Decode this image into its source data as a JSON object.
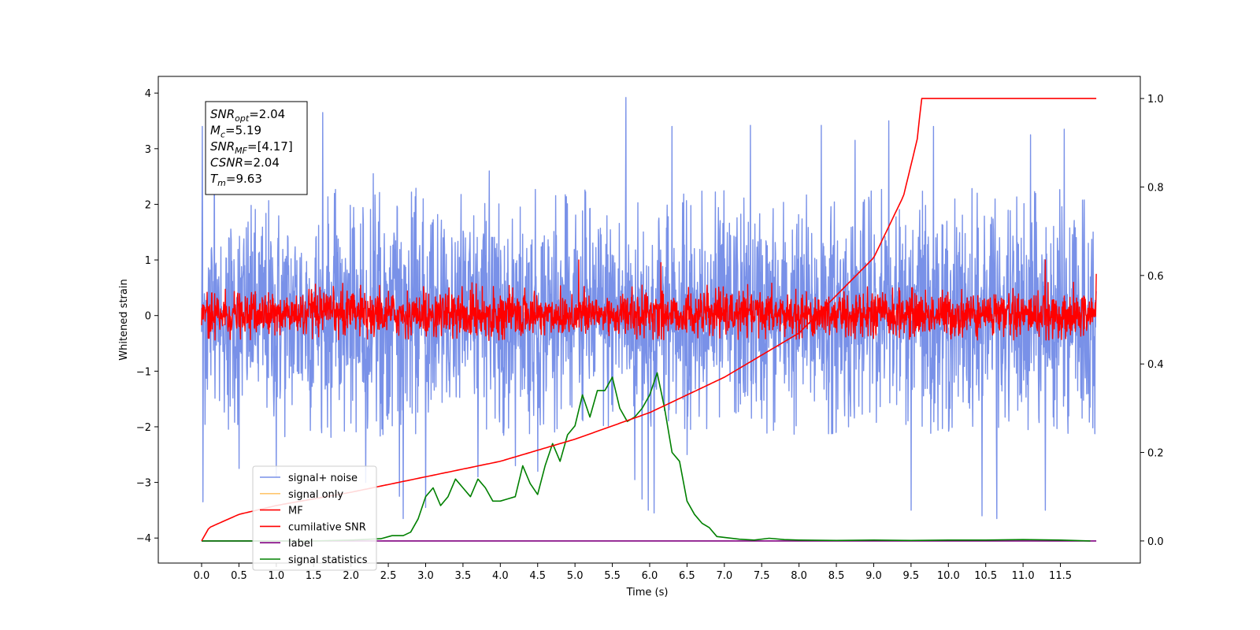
{
  "chart_data": {
    "type": "line",
    "title": "",
    "xlabel": "Time (s)",
    "ylabel": "Whitened strain",
    "y2label": "",
    "xlim": [
      -0.58,
      12.57
    ],
    "ylim": [
      -4.45,
      4.3
    ],
    "y2lim": [
      -0.05,
      1.05
    ],
    "xticks": [
      0.0,
      0.5,
      1.0,
      1.5,
      2.0,
      2.5,
      3.0,
      3.5,
      4.0,
      4.5,
      5.0,
      5.5,
      6.0,
      6.5,
      7.0,
      7.5,
      8.0,
      8.5,
      9.0,
      9.5,
      10.0,
      10.5,
      11.0,
      11.5
    ],
    "xtick_labels": [
      "0.0",
      "0.5",
      "1.0",
      "1.5",
      "2.0",
      "2.5",
      "3.0",
      "3.5",
      "4.0",
      "4.5",
      "5.0",
      "5.5",
      "6.0",
      "6.5",
      "7.0",
      "7.5",
      "8.0",
      "8.5",
      "9.0",
      "9.5",
      "10.0",
      "10.5",
      "11.0",
      "11.5"
    ],
    "yticks": [
      -4,
      -3,
      -2,
      -1,
      0,
      1,
      2,
      3,
      4
    ],
    "ytick_labels": [
      "−4",
      "−3",
      "−2",
      "−1",
      "0",
      "1",
      "2",
      "3",
      "4"
    ],
    "y2ticks": [
      0.0,
      0.2,
      0.4,
      0.6,
      0.8,
      1.0
    ],
    "y2tick_labels": [
      "0.0",
      "0.2",
      "0.4",
      "0.6",
      "0.8",
      "1.0"
    ],
    "grid": false,
    "legend_position": "lower-left",
    "legend": [
      {
        "label": "signal+ noise",
        "color": "#7991e8"
      },
      {
        "label": "signal only",
        "color": "#ffc66e"
      },
      {
        "label": "MF",
        "color": "#ff0000"
      },
      {
        "label": "cumilative SNR",
        "color": "#ff0000"
      },
      {
        "label": "label",
        "color": "#800080"
      },
      {
        "label": "signal statistics",
        "color": "#008000"
      }
    ],
    "annotation": {
      "lines": [
        {
          "var": "SNR",
          "sub": "opt",
          "value": "=2.04"
        },
        {
          "var": "M",
          "sub": "c",
          "value": "=5.19"
        },
        {
          "var": "SNR",
          "sub": "MF",
          "value": "=[4.17]"
        },
        {
          "var": "CSNR",
          "sub": "",
          "value": "=2.04"
        },
        {
          "var": "T",
          "sub": "m",
          "value": "=9.63"
        }
      ]
    },
    "series": [
      {
        "name": "signal+ noise",
        "axis": "left",
        "color": "#7991e8",
        "t_start": 0.0,
        "t_end": 11.98,
        "envelope_peaks": [
          [
            0.02,
            -3.35
          ],
          [
            0.01,
            3.4
          ],
          [
            0.17,
            3.4
          ],
          [
            0.5,
            -2.75
          ],
          [
            1.0,
            -2.9
          ],
          [
            1.62,
            3.65
          ],
          [
            2.2,
            -3.0
          ],
          [
            2.3,
            2.55
          ],
          [
            2.65,
            -3.25
          ],
          [
            2.7,
            -3.65
          ],
          [
            3.0,
            -3.45
          ],
          [
            3.7,
            -2.9
          ],
          [
            3.85,
            2.6
          ],
          [
            4.2,
            -2.7
          ],
          [
            4.5,
            -2.8
          ],
          [
            5.68,
            3.92
          ],
          [
            5.8,
            -2.95
          ],
          [
            5.9,
            -3.3
          ],
          [
            5.98,
            -3.5
          ],
          [
            6.06,
            -3.55
          ],
          [
            6.3,
            3.4
          ],
          [
            6.5,
            -2.5
          ],
          [
            7.35,
            3.42
          ],
          [
            8.3,
            3.42
          ],
          [
            8.75,
            3.15
          ],
          [
            9.2,
            3.5
          ],
          [
            9.5,
            -3.5
          ],
          [
            9.8,
            3.4
          ],
          [
            10.45,
            -3.6
          ],
          [
            10.65,
            -3.65
          ],
          [
            11.1,
            3.25
          ],
          [
            11.3,
            -3.5
          ],
          [
            11.55,
            3.35
          ]
        ],
        "typical_range": [
          -2.2,
          2.3
        ]
      },
      {
        "name": "MF",
        "axis": "left",
        "color": "#ff0000",
        "t_start": 0.0,
        "t_end": 11.98,
        "typical_range": [
          -0.45,
          0.6
        ],
        "peaks": [
          [
            5.05,
            1.0
          ],
          [
            6.15,
            0.95
          ],
          [
            11.3,
            1.0
          ],
          [
            11.98,
            0.75
          ]
        ]
      },
      {
        "name": "cumilative SNR",
        "axis": "right",
        "color": "#ff0000",
        "x": [
          0.0,
          0.1,
          0.5,
          1.0,
          2.0,
          3.0,
          4.0,
          5.0,
          6.0,
          7.0,
          8.0,
          9.0,
          9.4,
          9.6,
          9.63,
          11.98
        ],
        "values": [
          0.0,
          0.03,
          0.06,
          0.08,
          0.11,
          0.145,
          0.18,
          0.23,
          0.29,
          0.37,
          0.47,
          0.64,
          0.78,
          0.92,
          1.0,
          1.0
        ]
      },
      {
        "name": "label",
        "axis": "right",
        "color": "#800080",
        "x": [
          0.0,
          11.98
        ],
        "values": [
          0.0,
          0.0
        ]
      },
      {
        "name": "signal statistics",
        "axis": "right",
        "color": "#008000",
        "x": [
          0.0,
          0.5,
          1.0,
          1.5,
          2.0,
          2.4,
          2.55,
          2.7,
          2.8,
          2.9,
          3.0,
          3.1,
          3.2,
          3.3,
          3.4,
          3.5,
          3.6,
          3.7,
          3.8,
          3.9,
          4.0,
          4.1,
          4.2,
          4.3,
          4.4,
          4.5,
          4.6,
          4.7,
          4.8,
          4.9,
          5.0,
          5.1,
          5.2,
          5.3,
          5.4,
          5.5,
          5.6,
          5.7,
          5.8,
          5.9,
          6.0,
          6.1,
          6.2,
          6.3,
          6.4,
          6.5,
          6.6,
          6.7,
          6.8,
          6.9,
          7.0,
          7.2,
          7.4,
          7.6,
          7.8,
          8.0,
          8.5,
          9.0,
          9.5,
          10.0,
          10.5,
          11.0,
          11.5,
          11.9
        ],
        "values": [
          0.0,
          0.0,
          0.0,
          0.0,
          0.002,
          0.005,
          0.012,
          0.012,
          0.02,
          0.05,
          0.1,
          0.12,
          0.08,
          0.1,
          0.14,
          0.12,
          0.1,
          0.14,
          0.12,
          0.09,
          0.09,
          0.095,
          0.1,
          0.17,
          0.13,
          0.105,
          0.17,
          0.22,
          0.18,
          0.24,
          0.26,
          0.33,
          0.28,
          0.34,
          0.34,
          0.37,
          0.3,
          0.27,
          0.28,
          0.3,
          0.33,
          0.38,
          0.3,
          0.2,
          0.18,
          0.09,
          0.06,
          0.04,
          0.03,
          0.01,
          0.008,
          0.004,
          0.002,
          0.006,
          0.003,
          0.002,
          0.001,
          0.002,
          0.001,
          0.002,
          0.002,
          0.003,
          0.002,
          0.0
        ]
      }
    ]
  }
}
